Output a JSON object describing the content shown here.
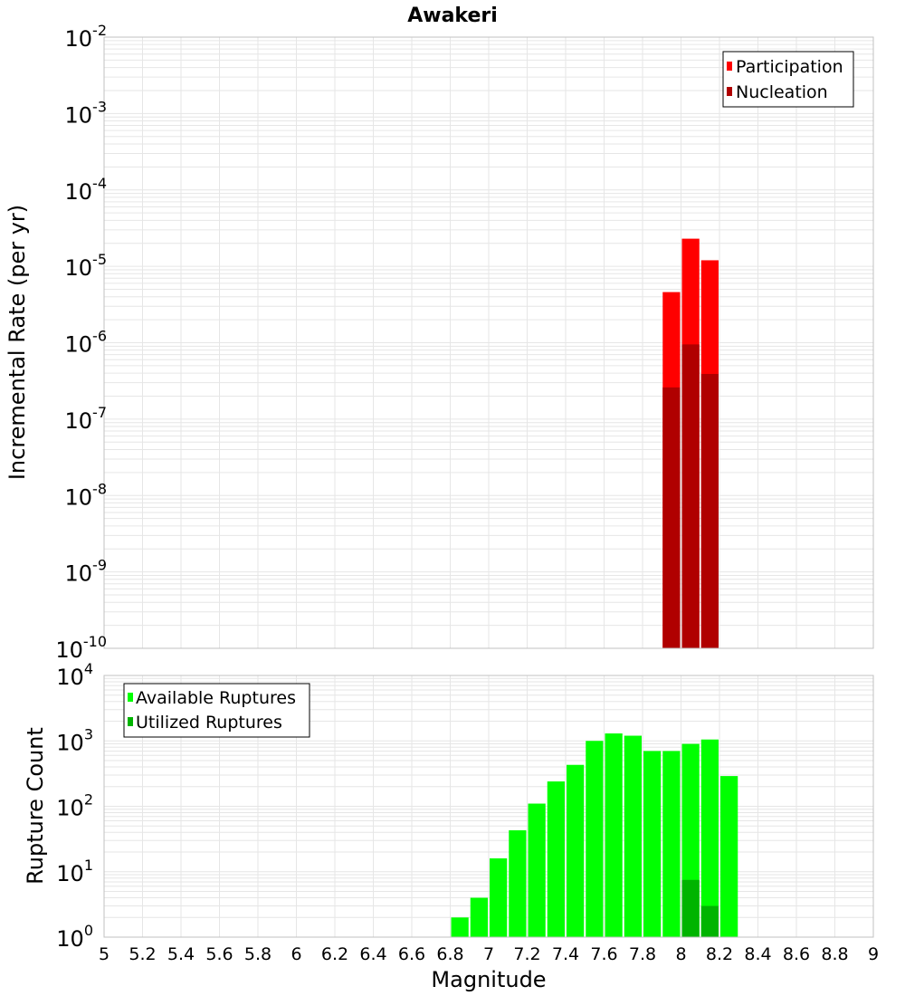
{
  "colors": {
    "participation": "#ff0000",
    "nucleation": "#b00000",
    "available": "#00ff00",
    "utilized": "#00b400",
    "grid": "#e6e6e6",
    "frame": "#c0c0c0"
  },
  "chart_data": [
    {
      "type": "bar",
      "title": "Awakeri",
      "ylabel": "Incremental Rate (per yr)",
      "yscale": "log",
      "ylim_exp": [
        -10,
        -2
      ],
      "ytick_exps": [
        "-10",
        "-9",
        "-8",
        "-7",
        "-6",
        "-5",
        "-4",
        "-3",
        "-2"
      ],
      "legend_position": "top-right",
      "series": [
        {
          "name": "Participation",
          "x": [
            7.95,
            8.05,
            8.15
          ],
          "values": [
            4.6e-06,
            2.3e-05,
            1.2e-05
          ]
        },
        {
          "name": "Nucleation",
          "x": [
            7.95,
            8.05,
            8.15
          ],
          "values": [
            2.6e-07,
            9.5e-07,
            3.9e-07
          ]
        }
      ]
    },
    {
      "type": "bar",
      "title": "",
      "xlabel": "Magnitude",
      "ylabel": "Rupture Count",
      "yscale": "log",
      "ylim_exp": [
        0,
        4
      ],
      "ytick_exps": [
        "0",
        "1",
        "2",
        "3",
        "4"
      ],
      "xlim": [
        5,
        9
      ],
      "xticks": [
        "5",
        "5.2",
        "5.4",
        "5.6",
        "5.8",
        "6",
        "6.2",
        "6.4",
        "6.6",
        "6.8",
        "7",
        "7.2",
        "7.4",
        "7.6",
        "7.8",
        "8",
        "8.2",
        "8.4",
        "8.6",
        "8.8",
        "9"
      ],
      "legend_position": "top-left",
      "series": [
        {
          "name": "Available Ruptures",
          "x": [
            6.65,
            6.85,
            6.95,
            7.05,
            7.15,
            7.25,
            7.35,
            7.45,
            7.55,
            7.65,
            7.75,
            7.85,
            7.95,
            8.05,
            8.15,
            8.25
          ],
          "values": [
            1,
            2,
            4,
            16,
            43,
            110,
            240,
            430,
            1000,
            1300,
            1200,
            700,
            700,
            900,
            1050,
            290
          ]
        },
        {
          "name": "Utilized Ruptures",
          "x": [
            7.95,
            8.05,
            8.15
          ],
          "values": [
            1,
            7.5,
            3
          ]
        }
      ]
    }
  ]
}
